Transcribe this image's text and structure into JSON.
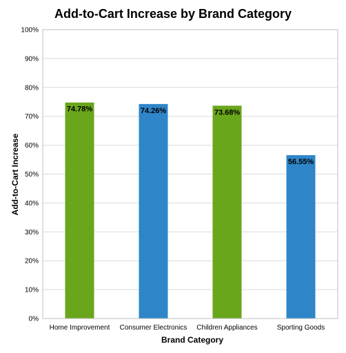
{
  "chart_data": {
    "type": "bar",
    "title": "Add-to-Cart Increase by Brand Category",
    "xlabel": "Brand Category",
    "ylabel": "Add-to-Cart Increase",
    "categories": [
      "Home Improvement",
      "Consumer Electronics",
      "Children Appliances",
      "Sporting Goods"
    ],
    "values": [
      74.78,
      74.26,
      73.68,
      56.55
    ],
    "data_labels": [
      "74.78%",
      "74.26%",
      "73.68%",
      "56.55%"
    ],
    "bar_colors": [
      "#6aa61c",
      "#2e86c8",
      "#6aa61c",
      "#2e86c8"
    ],
    "ylim": [
      0,
      100
    ],
    "yticks": [
      "0%",
      "10%",
      "20%",
      "30%",
      "40%",
      "50%",
      "60%",
      "70%",
      "80%",
      "90%",
      "100%"
    ],
    "grid": true,
    "legend": "none"
  }
}
